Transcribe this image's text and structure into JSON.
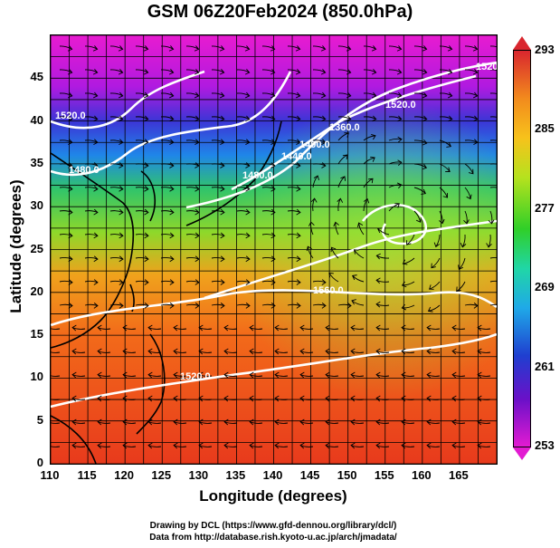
{
  "title": "GSM 06Z20Feb2024 (850.0hPa)",
  "axes": {
    "xlabel": "Longitude (degrees)",
    "ylabel": "Latitude  (degrees)",
    "xticks": [
      "110",
      "115",
      "120",
      "125",
      "130",
      "135",
      "140",
      "145",
      "150",
      "155",
      "160",
      "165"
    ],
    "yticks": [
      "45",
      "40",
      "35",
      "30",
      "25",
      "20",
      "15",
      "10",
      "5",
      "0"
    ]
  },
  "colorbar": {
    "ticks": [
      "293",
      "285",
      "277",
      "269",
      "261",
      "253"
    ],
    "min": 253,
    "max": 293
  },
  "contour_labels": [
    "1520.0",
    "1480.0",
    "1480.0",
    "1440.0",
    "1400.0",
    "1360.0",
    "1520.0",
    "1520.0",
    "1560.0",
    "1520.0"
  ],
  "credits": {
    "line1": "Drawing by DCL (https://www.gfd-dennou.org/library/dcl/)",
    "line2": "Data from http://database.rish.kyoto-u.ac.jp/arch/jmadata/"
  },
  "map_data": {
    "lon_range": [
      110,
      170
    ],
    "lat_range": [
      0,
      50
    ],
    "field": "temperature (K)",
    "contours": "geopotential height (m)",
    "vectors": "wind streamlines"
  }
}
